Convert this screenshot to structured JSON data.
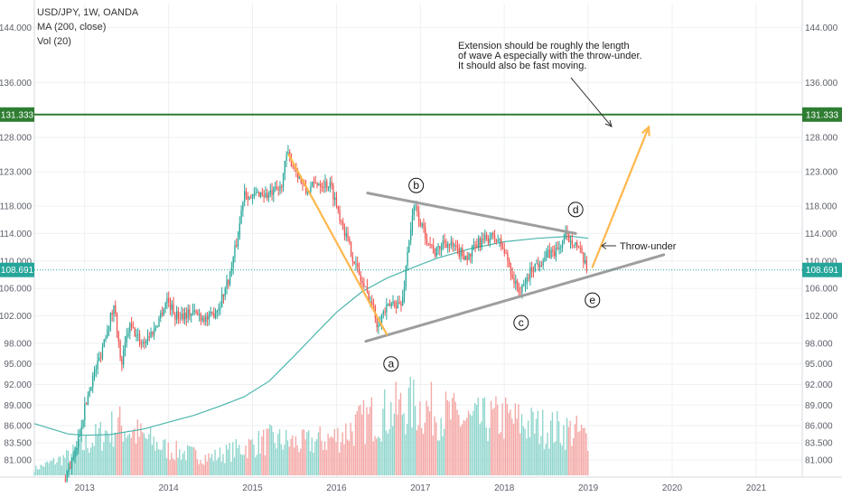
{
  "header": {
    "symbol": "USD/JPY, 1W, OANDA",
    "ma": "MA (200, close)",
    "vol": "Vol (20)"
  },
  "colors": {
    "up": "#26a69a",
    "down": "#ef5350",
    "vol_up": "#8ed5cc",
    "vol_down": "#f4a6a4",
    "ma": "#4db6ac",
    "level_line": "#2e7d32",
    "price_line": "#26a69a",
    "trend_lines": "#9e9e9e",
    "projection": "#ffb74d",
    "grid": "#eef0f3"
  },
  "chart_data": {
    "type": "candlestick",
    "title": "USD/JPY, 1W, OANDA",
    "indicators": [
      "MA (200, close)",
      "Vol (20)"
    ],
    "x_ticks": [
      "2013",
      "2014",
      "2015",
      "2016",
      "2017",
      "2018",
      "2019",
      "2020",
      "2021"
    ],
    "y_ticks": [
      "144.000",
      "136.000",
      "131.333",
      "128.000",
      "123.000",
      "118.000",
      "114.000",
      "110.000",
      "108.691",
      "106.000",
      "102.000",
      "98.000",
      "95.000",
      "92.000",
      "89.000",
      "86.000",
      "83.500",
      "81.000"
    ],
    "ylim": [
      78.5,
      147.5
    ],
    "xlim": [
      2012.4,
      2021.55
    ],
    "horizontal_level": 131.333,
    "last_price": 108.691,
    "price_path": [
      [
        2012.77,
        78.2
      ],
      [
        2012.9,
        81.5
      ],
      [
        2013.0,
        87.5
      ],
      [
        2013.1,
        92.5
      ],
      [
        2013.2,
        96.0
      ],
      [
        2013.3,
        101.0
      ],
      [
        2013.38,
        103.5
      ],
      [
        2013.45,
        94.5
      ],
      [
        2013.55,
        100.5
      ],
      [
        2013.7,
        98.0
      ],
      [
        2013.85,
        100.0
      ],
      [
        2014.0,
        104.5
      ],
      [
        2014.1,
        102.0
      ],
      [
        2014.3,
        102.5
      ],
      [
        2014.5,
        101.5
      ],
      [
        2014.62,
        103.5
      ],
      [
        2014.75,
        108.0
      ],
      [
        2014.85,
        114.0
      ],
      [
        2014.92,
        120.5
      ],
      [
        2015.0,
        119.0
      ],
      [
        2015.1,
        120.0
      ],
      [
        2015.2,
        119.5
      ],
      [
        2015.35,
        120.5
      ],
      [
        2015.43,
        125.5
      ],
      [
        2015.55,
        123.0
      ],
      [
        2015.65,
        120.0
      ],
      [
        2015.8,
        121.5
      ],
      [
        2015.95,
        121.0
      ],
      [
        2016.05,
        117.0
      ],
      [
        2016.15,
        113.0
      ],
      [
        2016.3,
        107.5
      ],
      [
        2016.45,
        103.5
      ],
      [
        2016.5,
        101.0
      ],
      [
        2016.58,
        102.5
      ],
      [
        2016.7,
        104.0
      ],
      [
        2016.8,
        103.5
      ],
      [
        2016.88,
        113.0
      ],
      [
        2016.95,
        118.0
      ],
      [
        2017.05,
        114.5
      ],
      [
        2017.2,
        111.0
      ],
      [
        2017.3,
        113.0
      ],
      [
        2017.45,
        111.5
      ],
      [
        2017.6,
        110.5
      ],
      [
        2017.7,
        112.5
      ],
      [
        2017.85,
        113.5
      ],
      [
        2017.95,
        113.0
      ],
      [
        2018.05,
        110.5
      ],
      [
        2018.15,
        106.5
      ],
      [
        2018.22,
        105.5
      ],
      [
        2018.35,
        109.0
      ],
      [
        2018.45,
        110.0
      ],
      [
        2018.55,
        111.0
      ],
      [
        2018.65,
        111.5
      ],
      [
        2018.75,
        113.5
      ],
      [
        2018.85,
        113.0
      ],
      [
        2018.93,
        111.0
      ],
      [
        2019.0,
        108.7
      ]
    ],
    "moving_average": [
      [
        2012.4,
        86.3
      ],
      [
        2012.8,
        84.8
      ],
      [
        2013.0,
        84.6
      ],
      [
        2013.3,
        84.7
      ],
      [
        2013.7,
        85.5
      ],
      [
        2014.0,
        86.5
      ],
      [
        2014.3,
        87.5
      ],
      [
        2014.6,
        88.8
      ],
      [
        2014.9,
        90.2
      ],
      [
        2015.2,
        92.5
      ],
      [
        2015.5,
        96.2
      ],
      [
        2015.8,
        100.0
      ],
      [
        2016.0,
        102.5
      ],
      [
        2016.3,
        105.5
      ],
      [
        2016.6,
        107.5
      ],
      [
        2016.9,
        109.0
      ],
      [
        2017.2,
        110.4
      ],
      [
        2017.6,
        111.8
      ],
      [
        2018.0,
        112.8
      ],
      [
        2018.4,
        113.3
      ],
      [
        2018.8,
        113.6
      ],
      [
        2019.0,
        113.3
      ]
    ],
    "volume_profile": [
      [
        2012.4,
        0.05
      ],
      [
        2012.8,
        0.15
      ],
      [
        2013.1,
        0.28
      ],
      [
        2013.4,
        0.4
      ],
      [
        2013.7,
        0.3
      ],
      [
        2014.0,
        0.2
      ],
      [
        2014.5,
        0.14
      ],
      [
        2014.9,
        0.22
      ],
      [
        2015.2,
        0.28
      ],
      [
        2015.6,
        0.25
      ],
      [
        2016.0,
        0.3
      ],
      [
        2016.4,
        0.45
      ],
      [
        2016.9,
        0.55
      ],
      [
        2017.2,
        0.5
      ],
      [
        2017.6,
        0.42
      ],
      [
        2018.0,
        0.45
      ],
      [
        2018.4,
        0.38
      ],
      [
        2018.8,
        0.35
      ],
      [
        2019.0,
        0.3
      ]
    ],
    "trend_lines": [
      {
        "points": [
          [
            2016.35,
            98.3
          ],
          [
            2019.9,
            110.9
          ]
        ]
      },
      {
        "points": [
          [
            2016.37,
            119.9
          ],
          [
            2018.85,
            114.0
          ]
        ]
      }
    ],
    "projection_arrows": [
      {
        "points": [
          [
            2015.43,
            125.5
          ],
          [
            2016.6,
            99.3
          ]
        ]
      },
      {
        "points": [
          [
            2019.05,
            109.1
          ],
          [
            2019.72,
            129.5
          ]
        ]
      }
    ],
    "wave_labels": [
      {
        "label": "a",
        "x": 2016.65,
        "y": 95.0
      },
      {
        "label": "b",
        "x": 2016.95,
        "y": 121.0
      },
      {
        "label": "c",
        "x": 2018.2,
        "y": 101.0
      },
      {
        "label": "d",
        "x": 2018.85,
        "y": 117.5
      },
      {
        "label": "e",
        "x": 2019.05,
        "y": 104.3
      }
    ],
    "annotations": [
      {
        "id": "extension",
        "lines": [
          "Extension should be roughly the length",
          "of wave A especially with the throw-under.",
          "It should also be fast moving."
        ]
      },
      {
        "id": "throw_under",
        "lines": [
          "Throw-under"
        ]
      }
    ]
  }
}
